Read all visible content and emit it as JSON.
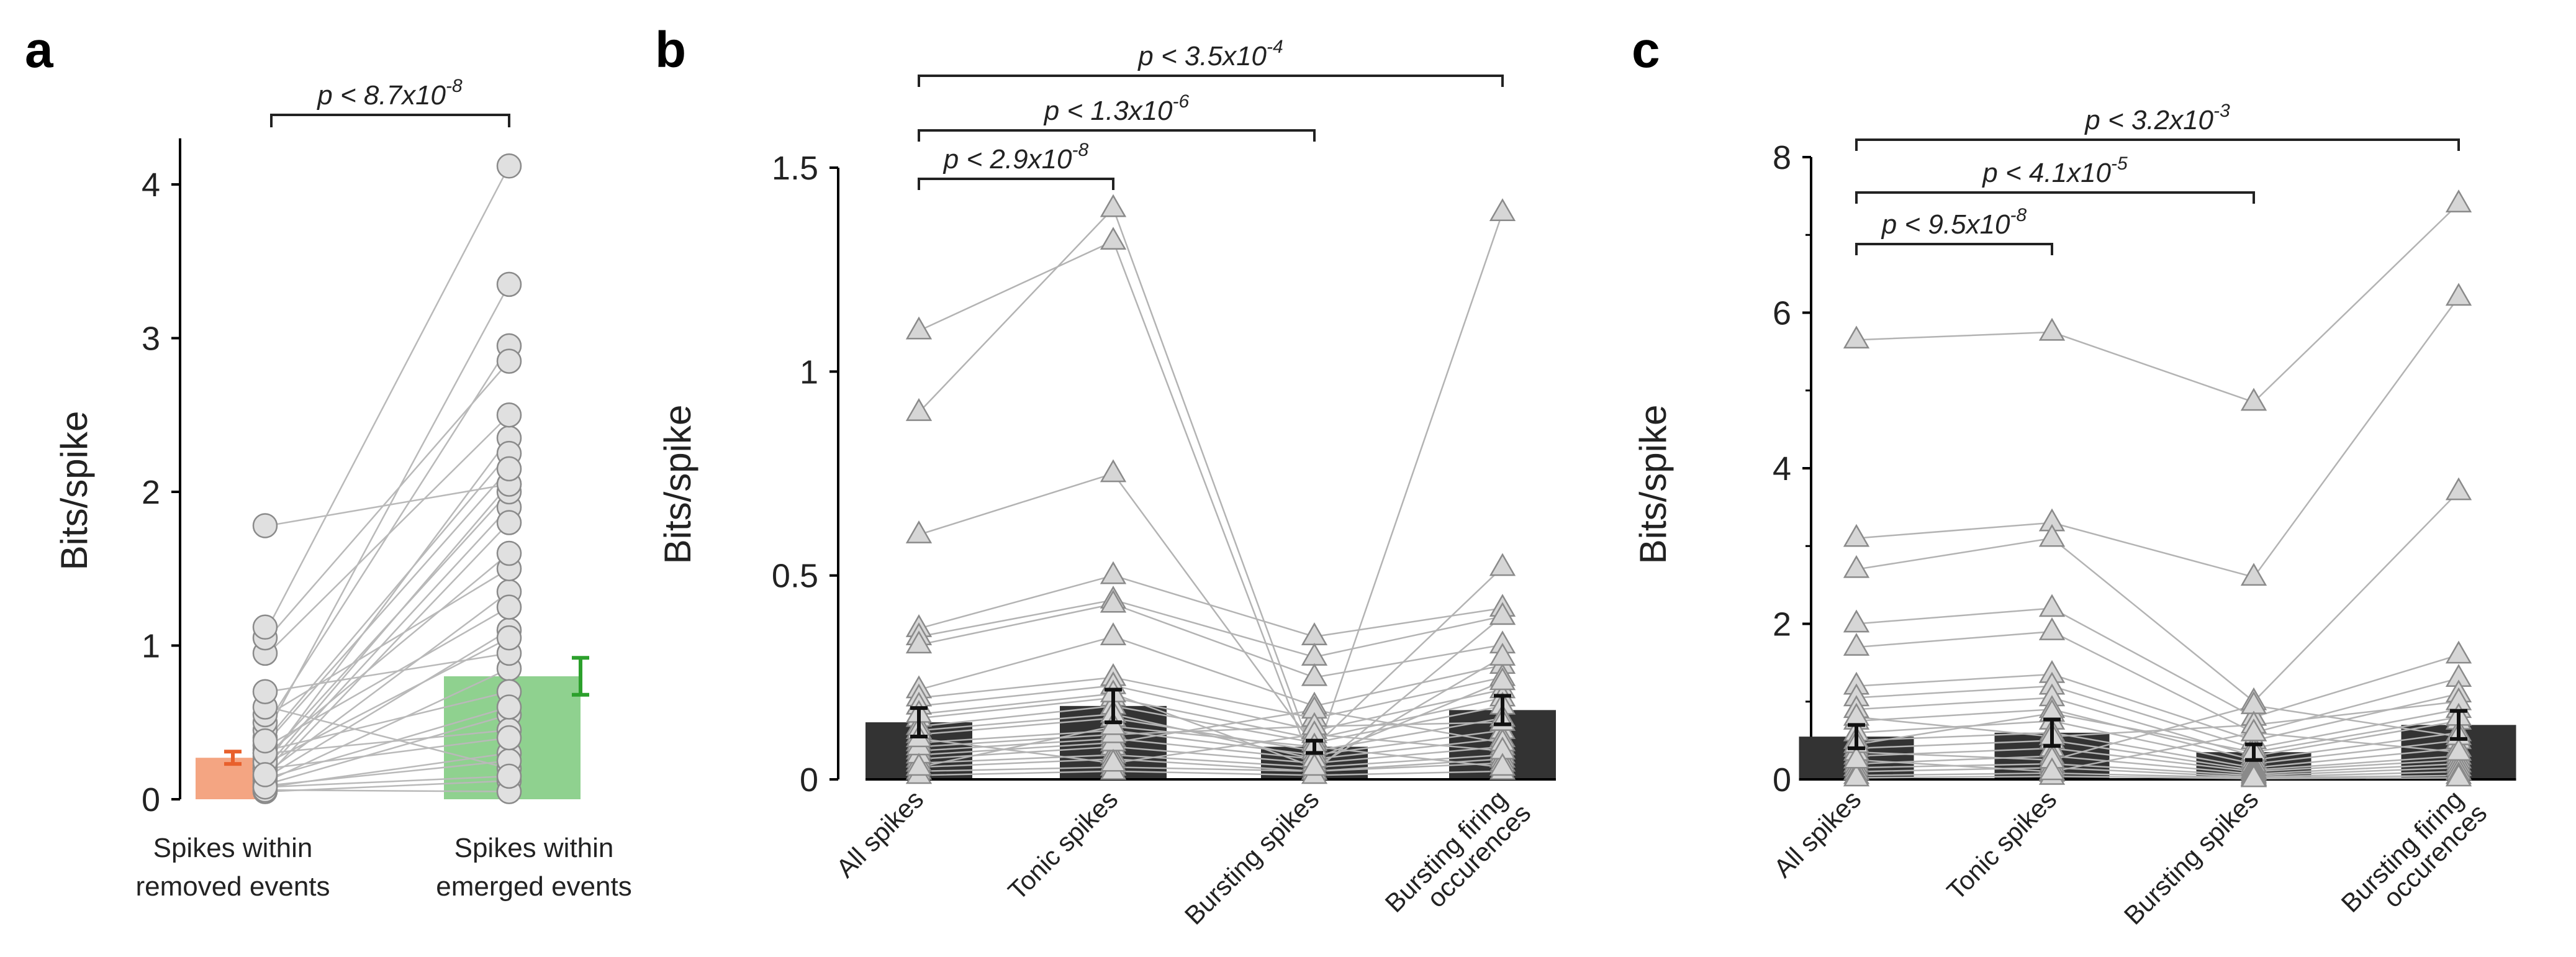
{
  "chart_data": [
    {
      "panel": "a",
      "type": "bar",
      "ylabel": "Bits/spike",
      "ylim": [
        0,
        4.3
      ],
      "yticks": [
        0,
        1,
        2,
        3,
        4
      ],
      "categories": [
        "Spikes within removed events",
        "Spikes within emerged events"
      ],
      "category_lines": [
        [
          "Spikes within",
          "removed events"
        ],
        [
          "Spikes within",
          "emerged events"
        ]
      ],
      "bar_means": [
        0.27,
        0.8
      ],
      "bar_errors": [
        0.04,
        0.12
      ],
      "bar_colors": [
        "#f4a582",
        "#8fd18f"
      ],
      "error_colors": [
        "#e8602c",
        "#2ca02c"
      ],
      "paired_values": [
        [
          0.05,
          0.12
        ],
        [
          0.08,
          0.3
        ],
        [
          0.1,
          0.55
        ],
        [
          0.12,
          0.85
        ],
        [
          0.15,
          1.1
        ],
        [
          0.18,
          1.35
        ],
        [
          0.2,
          1.9
        ],
        [
          0.22,
          2.05
        ],
        [
          0.25,
          2.35
        ],
        [
          0.28,
          2.0
        ],
        [
          0.3,
          0.45
        ],
        [
          0.32,
          0.7
        ],
        [
          0.35,
          1.25
        ],
        [
          0.4,
          2.25
        ],
        [
          0.45,
          3.35
        ],
        [
          0.5,
          2.95
        ],
        [
          0.55,
          1.5
        ],
        [
          0.6,
          0.2
        ],
        [
          0.7,
          0.95
        ],
        [
          0.95,
          2.5
        ],
        [
          1.05,
          2.85
        ],
        [
          1.12,
          4.12
        ],
        [
          1.78,
          2.05
        ],
        [
          0.06,
          0.05
        ],
        [
          0.09,
          0.25
        ],
        [
          0.14,
          0.6
        ],
        [
          0.2,
          0.4
        ],
        [
          0.24,
          1.05
        ],
        [
          0.3,
          1.6
        ],
        [
          0.38,
          2.15
        ],
        [
          0.08,
          0.15
        ],
        [
          0.16,
          1.8
        ]
      ],
      "comparisons": [
        {
          "from": 0,
          "to": 1,
          "text": "p < 8.7x10",
          "exp": "-8"
        }
      ]
    },
    {
      "panel": "b",
      "type": "bar",
      "ylabel": "Bits/spike",
      "ylim": [
        0,
        1.5
      ],
      "yticks": [
        0,
        0.5,
        1,
        1.5
      ],
      "ytick_labels": [
        "0",
        "0.5",
        "1",
        "1.5"
      ],
      "categories": [
        "All spikes",
        "Tonic spikes",
        "Bursting spikes",
        "Bursting firing occurences"
      ],
      "category_lines": [
        [
          "All spikes"
        ],
        [
          "Tonic spikes"
        ],
        [
          "Bursting spikes"
        ],
        [
          "Bursting firing",
          "occurences"
        ]
      ],
      "bar_means": [
        0.14,
        0.18,
        0.08,
        0.17
      ],
      "bar_errors": [
        0.035,
        0.04,
        0.015,
        0.035
      ],
      "bar_color": "#333333",
      "series": [
        [
          1.1,
          1.32,
          0.02,
          0.4
        ],
        [
          0.9,
          1.4,
          0.05,
          1.39
        ],
        [
          0.6,
          0.75,
          0.08,
          0.52
        ],
        [
          0.37,
          0.5,
          0.35,
          0.42
        ],
        [
          0.35,
          0.44,
          0.3,
          0.4
        ],
        [
          0.33,
          0.43,
          0.25,
          0.33
        ],
        [
          0.22,
          0.35,
          0.18,
          0.28
        ],
        [
          0.2,
          0.25,
          0.15,
          0.25
        ],
        [
          0.18,
          0.23,
          0.12,
          0.22
        ],
        [
          0.15,
          0.2,
          0.1,
          0.2
        ],
        [
          0.13,
          0.18,
          0.09,
          0.18
        ],
        [
          0.11,
          0.15,
          0.07,
          0.15
        ],
        [
          0.09,
          0.12,
          0.06,
          0.12
        ],
        [
          0.07,
          0.1,
          0.05,
          0.1
        ],
        [
          0.05,
          0.08,
          0.04,
          0.08
        ],
        [
          0.04,
          0.06,
          0.03,
          0.06
        ],
        [
          0.03,
          0.05,
          0.02,
          0.05
        ],
        [
          0.02,
          0.03,
          0.02,
          0.04
        ],
        [
          0.01,
          0.02,
          0.01,
          0.02
        ],
        [
          0.06,
          0.09,
          0.17,
          0.09
        ],
        [
          0.08,
          0.11,
          0.13,
          0.14
        ],
        [
          0.12,
          0.16,
          0.05,
          0.24
        ],
        [
          0.1,
          0.04,
          0.11,
          0.07
        ],
        [
          0.16,
          0.21,
          0.03,
          0.3
        ],
        [
          0.03,
          0.13,
          0.08,
          0.03
        ]
      ],
      "comparisons": [
        {
          "from": 0,
          "to": 1,
          "text": "p < 2.9x10",
          "exp": "-8"
        },
        {
          "from": 0,
          "to": 2,
          "text": "p < 1.3x10",
          "exp": "-6"
        },
        {
          "from": 0,
          "to": 3,
          "text": "p < 3.5x10",
          "exp": "-4"
        }
      ]
    },
    {
      "panel": "c",
      "type": "bar",
      "ylabel": "Bits/spike",
      "ylim": [
        0,
        8
      ],
      "yticks": [
        0,
        2,
        4,
        6,
        8
      ],
      "minor_yticks": [
        1,
        3,
        5,
        7
      ],
      "categories": [
        "All spikes",
        "Tonic spikes",
        "Bursting spikes",
        "Bursting firing occurences"
      ],
      "category_lines": [
        [
          "All spikes"
        ],
        [
          "Tonic spikes"
        ],
        [
          "Bursting spikes"
        ],
        [
          "Bursting firing",
          "occurences"
        ]
      ],
      "bar_means": [
        0.55,
        0.6,
        0.35,
        0.7
      ],
      "bar_errors": [
        0.15,
        0.17,
        0.1,
        0.18
      ],
      "bar_color": "#333333",
      "series": [
        [
          5.65,
          5.75,
          4.85,
          7.4
        ],
        [
          3.1,
          3.3,
          2.6,
          6.2
        ],
        [
          2.7,
          3.1,
          1.0,
          3.7
        ],
        [
          2.0,
          2.2,
          0.8,
          1.6
        ],
        [
          1.7,
          1.9,
          0.6,
          1.3
        ],
        [
          1.2,
          1.35,
          0.5,
          1.1
        ],
        [
          1.05,
          1.2,
          0.4,
          0.9
        ],
        [
          0.9,
          1.05,
          0.3,
          0.75
        ],
        [
          0.75,
          0.9,
          0.25,
          0.6
        ],
        [
          0.6,
          0.75,
          0.2,
          0.5
        ],
        [
          0.5,
          0.6,
          0.15,
          0.4
        ],
        [
          0.4,
          0.5,
          0.12,
          0.3
        ],
        [
          0.3,
          0.4,
          0.1,
          0.25
        ],
        [
          0.2,
          0.3,
          0.07,
          0.2
        ],
        [
          0.15,
          0.2,
          0.05,
          0.15
        ],
        [
          0.1,
          0.15,
          0.03,
          0.1
        ],
        [
          0.05,
          0.08,
          0.02,
          0.05
        ],
        [
          0.02,
          0.04,
          0.01,
          0.02
        ],
        [
          0.35,
          0.25,
          0.95,
          0.55
        ],
        [
          0.8,
          0.55,
          0.7,
          1.0
        ],
        [
          0.45,
          0.85,
          0.35,
          0.8
        ],
        [
          0.25,
          0.1,
          0.6,
          0.35
        ]
      ],
      "comparisons": [
        {
          "from": 0,
          "to": 1,
          "text": "p < 9.5x10",
          "exp": "-8"
        },
        {
          "from": 0,
          "to": 2,
          "text": "p < 4.1x10",
          "exp": "-5"
        },
        {
          "from": 0,
          "to": 3,
          "text": "p < 3.2x10",
          "exp": "-3"
        }
      ]
    }
  ]
}
